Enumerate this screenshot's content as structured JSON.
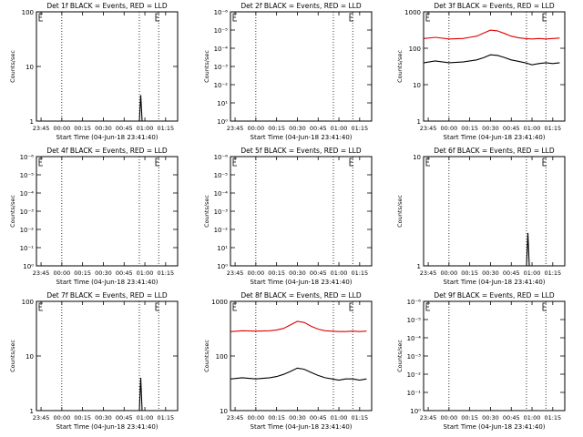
{
  "figure": {
    "background": "#ffffff"
  },
  "colors": {
    "events": "#000000",
    "lld": "#e00000"
  },
  "chart_data": [
    {
      "type": "line",
      "title": "Det 1f BLACK = Events, RED = LLD",
      "ylabel": "Counts/sec",
      "xlabel": "Start Time (04-Jun-18 23:41:40)",
      "x_ticks": [
        "23:45",
        "00:00",
        "00:15",
        "00:30",
        "00:45",
        "01:00",
        "01:15"
      ],
      "y_scale": "log",
      "ylim": [
        1,
        100
      ],
      "y_ticks": [
        "1",
        "10",
        "100"
      ],
      "series": [
        {
          "color": "#000000",
          "x": [
            "00:56",
            "00:57",
            "00:58",
            "00:59"
          ],
          "y": [
            1,
            3,
            1,
            1
          ]
        }
      ]
    },
    {
      "type": "line",
      "title": "Det 2f BLACK = Events, RED = LLD",
      "ylabel": "Counts/sec",
      "xlabel": "Start Time (04-Jun-18 23:41:40)",
      "x_ticks": [
        "23:45",
        "00:00",
        "00:15",
        "00:30",
        "00:45",
        "01:00",
        "01:15"
      ],
      "y_scale": "log",
      "ylim": [
        1,
        100000000000
      ],
      "y_ticks": [
        "10⁰",
        "10¹",
        "10⁻²",
        "10⁻³",
        "10⁻⁴",
        "10⁻⁵",
        "10⁻⁶"
      ],
      "series": []
    },
    {
      "type": "line",
      "title": "Det 3f BLACK = Events, RED = LLD",
      "ylabel": "Counts/sec",
      "xlabel": "Start Time (04-Jun-18 23:41:40)",
      "x_ticks": [
        "23:45",
        "00:00",
        "00:15",
        "00:30",
        "00:45",
        "01:00",
        "01:15"
      ],
      "y_scale": "log",
      "ylim": [
        1,
        1000
      ],
      "y_ticks": [
        "1",
        "10",
        "100",
        "1000"
      ],
      "series": [
        {
          "color": "#e00000",
          "x": [
            "23:42",
            "23:50",
            "00:00",
            "00:10",
            "00:15",
            "00:20",
            "00:25",
            "00:30",
            "00:35",
            "00:40",
            "00:45",
            "00:50",
            "00:55",
            "01:00",
            "01:05",
            "01:10",
            "01:15",
            "01:20"
          ],
          "y": [
            185,
            200,
            180,
            185,
            200,
            215,
            260,
            315,
            300,
            255,
            215,
            195,
            185,
            180,
            185,
            180,
            185,
            190
          ]
        },
        {
          "color": "#000000",
          "x": [
            "23:42",
            "23:50",
            "00:00",
            "00:10",
            "00:15",
            "00:20",
            "00:25",
            "00:30",
            "00:35",
            "00:40",
            "00:45",
            "00:50",
            "00:55",
            "01:00",
            "01:05",
            "01:10",
            "01:15",
            "01:20"
          ],
          "y": [
            40,
            45,
            40,
            42,
            45,
            48,
            55,
            66,
            64,
            56,
            48,
            44,
            40,
            35,
            38,
            40,
            38,
            40
          ]
        }
      ]
    },
    {
      "type": "line",
      "title": "Det 4f BLACK = Events, RED = LLD",
      "ylabel": "Counts/sec",
      "xlabel": "Start Time (04-Jun-18 23:41:40)",
      "x_ticks": [
        "23:45",
        "00:00",
        "00:15",
        "00:30",
        "00:45",
        "01:00",
        "01:15"
      ],
      "y_scale": "log",
      "ylim": [
        1,
        100000000000
      ],
      "y_ticks": [
        "10⁰",
        "10⁻¹",
        "10⁻²",
        "10⁻³",
        "10⁻⁴",
        "10⁻⁵",
        "10⁻⁶"
      ],
      "series": []
    },
    {
      "type": "line",
      "title": "Det 5f BLACK = Events, RED = LLD",
      "ylabel": "Counts/sec",
      "xlabel": "Start Time (04-Jun-18 23:41:40)",
      "x_ticks": [
        "23:45",
        "00:00",
        "00:15",
        "00:30",
        "00:45",
        "01:00",
        "01:15"
      ],
      "y_scale": "log",
      "ylim": [
        1,
        100000000000
      ],
      "y_ticks": [
        "10⁰",
        "10¹",
        "10⁻²",
        "10⁻³",
        "10⁻⁴",
        "10⁻⁵",
        "10⁻⁶"
      ],
      "series": []
    },
    {
      "type": "line",
      "title": "Det 6f BLACK = Events, RED = LLD",
      "ylabel": "Counts/sec",
      "xlabel": "Start Time (04-Jun-18 23:41:40)",
      "x_ticks": [
        "23:45",
        "00:00",
        "00:15",
        "00:30",
        "00:45",
        "01:00",
        "01:15"
      ],
      "y_scale": "log",
      "ylim": [
        1,
        10
      ],
      "y_ticks": [
        "1",
        "10"
      ],
      "series": [
        {
          "color": "#000000",
          "x": [
            "00:56",
            "00:57",
            "00:58",
            "00:59"
          ],
          "y": [
            1,
            2,
            1,
            1
          ]
        }
      ]
    },
    {
      "type": "line",
      "title": "Det 7f BLACK = Events, RED = LLD",
      "ylabel": "Counts/sec",
      "xlabel": "Start Time (04-Jun-18 23:41:40)",
      "x_ticks": [
        "23:45",
        "00:00",
        "00:15",
        "00:30",
        "00:45",
        "01:00",
        "01:15"
      ],
      "y_scale": "log",
      "ylim": [
        1,
        100
      ],
      "y_ticks": [
        "1",
        "10",
        "100"
      ],
      "series": [
        {
          "color": "#000000",
          "x": [
            "00:56",
            "00:57",
            "00:58",
            "00:59"
          ],
          "y": [
            1,
            4,
            1,
            1
          ]
        }
      ]
    },
    {
      "type": "line",
      "title": "Det 8f BLACK = Events, RED = LLD",
      "ylabel": "Counts/sec",
      "xlabel": "Start Time (04-Jun-18 23:41:40)",
      "x_ticks": [
        "23:45",
        "00:00",
        "00:15",
        "00:30",
        "00:45",
        "01:00",
        "01:15"
      ],
      "y_scale": "log",
      "ylim": [
        10,
        1000
      ],
      "y_ticks": [
        "10",
        "100",
        "1000"
      ],
      "series": [
        {
          "color": "#e00000",
          "x": [
            "23:42",
            "23:50",
            "00:00",
            "00:10",
            "00:15",
            "00:20",
            "00:25",
            "00:30",
            "00:35",
            "00:40",
            "00:45",
            "00:50",
            "00:55",
            "01:00",
            "01:05",
            "01:10",
            "01:15",
            "01:20"
          ],
          "y": [
            280,
            290,
            285,
            290,
            300,
            320,
            370,
            430,
            410,
            350,
            310,
            290,
            285,
            280,
            280,
            285,
            280,
            285
          ]
        },
        {
          "color": "#000000",
          "x": [
            "23:42",
            "23:50",
            "00:00",
            "00:10",
            "00:15",
            "00:20",
            "00:25",
            "00:30",
            "00:35",
            "00:40",
            "00:45",
            "00:50",
            "00:55",
            "01:00",
            "01:05",
            "01:10",
            "01:15",
            "01:20"
          ],
          "y": [
            38,
            40,
            38,
            40,
            42,
            46,
            52,
            60,
            57,
            50,
            44,
            40,
            38,
            36,
            38,
            38,
            36,
            38
          ]
        }
      ]
    },
    {
      "type": "line",
      "title": "Det 9f BLACK = Events, RED = LLD",
      "ylabel": "Counts/sec",
      "xlabel": "Start Time (04-Jun-18 23:41:40)",
      "x_ticks": [
        "23:45",
        "00:00",
        "00:15",
        "00:30",
        "00:45",
        "01:00",
        "01:15"
      ],
      "y_scale": "log",
      "ylim": [
        1,
        100000000000
      ],
      "y_ticks": [
        "10⁰",
        "10⁻¹",
        "10⁻²",
        "10⁻³",
        "10⁻⁴",
        "10⁻⁵",
        "10⁻⁶"
      ],
      "series": []
    }
  ]
}
